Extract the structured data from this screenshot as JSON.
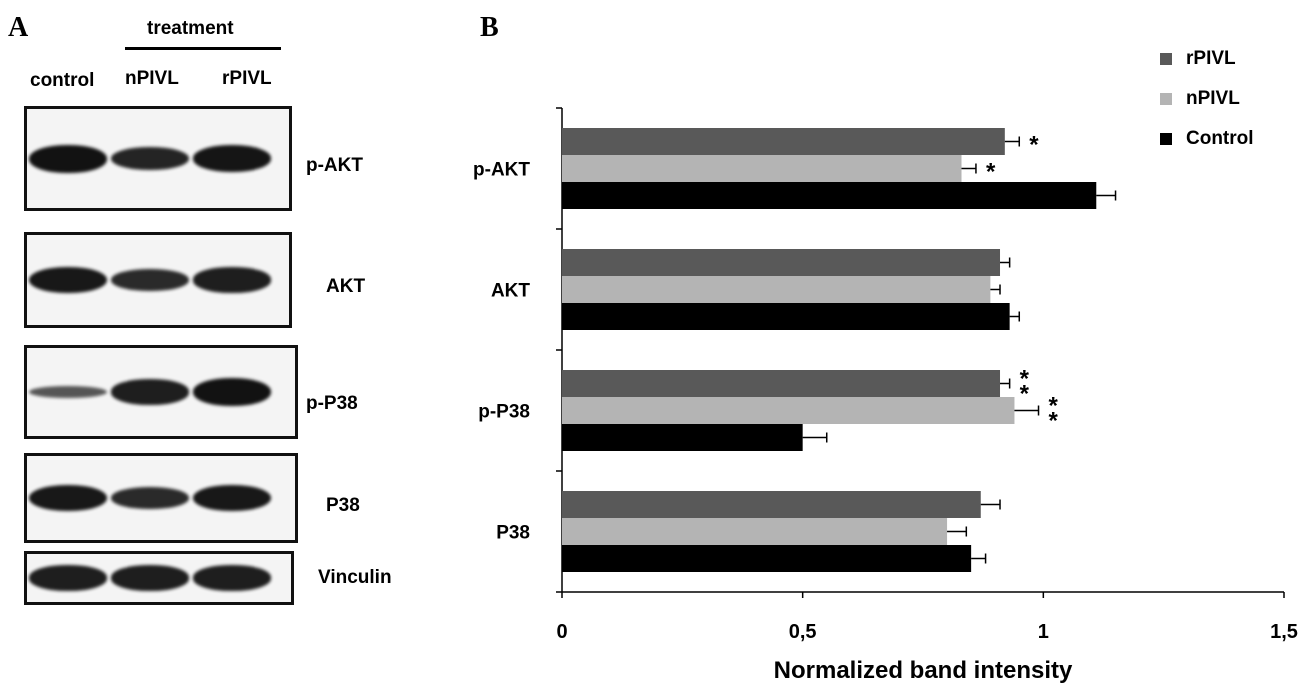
{
  "panel_a": {
    "letter": "A",
    "treatment_label": "treatment",
    "lanes": [
      "control",
      "nPIVL",
      "rPIVL"
    ],
    "blots": [
      {
        "label": "p-AKT",
        "intensities": [
          1.0,
          0.85,
          0.97
        ]
      },
      {
        "label": "AKT",
        "intensities": [
          0.95,
          0.8,
          0.9
        ]
      },
      {
        "label": "p-P38",
        "intensities": [
          0.45,
          0.9,
          1.0
        ]
      },
      {
        "label": "P38",
        "intensities": [
          0.95,
          0.8,
          0.95
        ]
      },
      {
        "label": "Vinculin",
        "intensities": [
          0.9,
          0.9,
          0.9
        ]
      }
    ]
  },
  "panel_b": {
    "letter": "B"
  },
  "chart_data": {
    "type": "bar",
    "orientation": "horizontal",
    "categories": [
      "p-AKT",
      "AKT",
      "p-P38",
      "P38"
    ],
    "series": [
      {
        "name": "rPIVL",
        "color": "#595959",
        "values": [
          0.92,
          0.91,
          0.91,
          0.87
        ],
        "errors": [
          0.03,
          0.02,
          0.02,
          0.04
        ],
        "significance": [
          "*",
          "",
          "**",
          ""
        ]
      },
      {
        "name": "nPIVL",
        "color": "#b4b4b4",
        "values": [
          0.83,
          0.89,
          0.94,
          0.8
        ],
        "errors": [
          0.03,
          0.02,
          0.05,
          0.04
        ],
        "significance": [
          "*",
          "",
          "**",
          ""
        ]
      },
      {
        "name": "Control",
        "color": "#000000",
        "values": [
          1.11,
          0.93,
          0.5,
          0.85
        ],
        "errors": [
          0.04,
          0.02,
          0.05,
          0.03
        ],
        "significance": [
          "",
          "",
          "",
          ""
        ]
      }
    ],
    "xlabel": "Normalized band intensity",
    "xlim": [
      0,
      1.5
    ],
    "xticks": [
      0,
      0.5,
      1,
      1.5
    ],
    "xtick_labels": [
      "0",
      "0,5",
      "1",
      "1,5"
    ],
    "grid": false,
    "legend_position": "top-right"
  }
}
